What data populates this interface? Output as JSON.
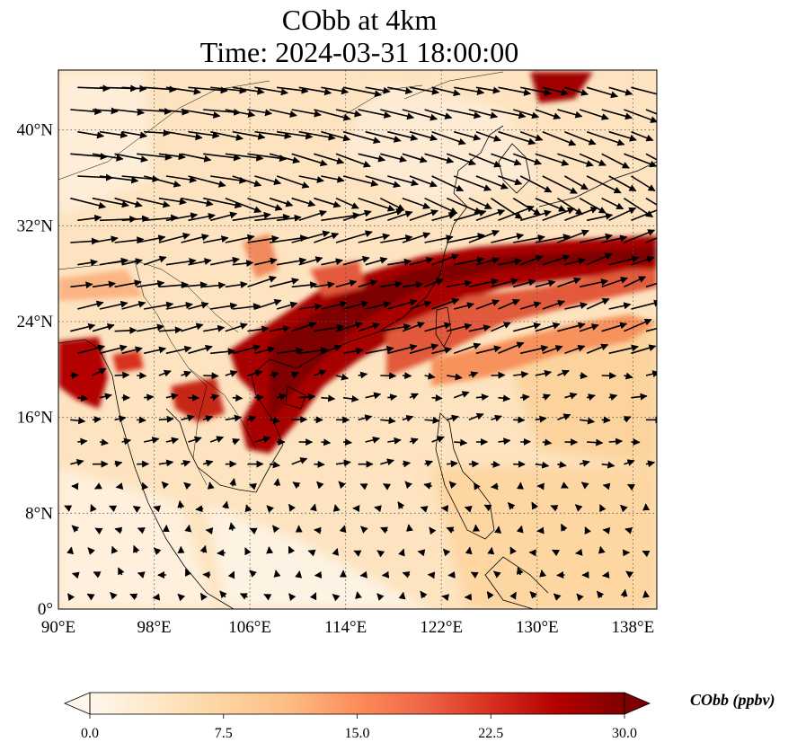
{
  "title": {
    "line1": "CObb at 4km",
    "line2": "Time: 2024-03-31 18:00:00"
  },
  "map": {
    "projection": "PlateCarree",
    "lon_range": [
      90,
      140
    ],
    "lat_range": [
      0,
      45
    ],
    "lon_ticks": [
      {
        "value": 90,
        "label": "90°E"
      },
      {
        "value": 98,
        "label": "98°E"
      },
      {
        "value": 106,
        "label": "106°E"
      },
      {
        "value": 114,
        "label": "114°E"
      },
      {
        "value": 122,
        "label": "122°E"
      },
      {
        "value": 130,
        "label": "130°E"
      },
      {
        "value": 138,
        "label": "138°E"
      }
    ],
    "lat_ticks": [
      {
        "value": 0,
        "label": "0°"
      },
      {
        "value": 8,
        "label": "8°N"
      },
      {
        "value": 16,
        "label": "16°N"
      },
      {
        "value": 24,
        "label": "24°N"
      },
      {
        "value": 32,
        "label": "32°N"
      },
      {
        "value": 40,
        "label": "40°N"
      }
    ],
    "gridlines": "dotted",
    "field": "CObb",
    "units": "ppbv",
    "wind_vectors": true
  },
  "colorbar": {
    "label": "CObb (ppbv)",
    "min": 0.0,
    "max": 30.0,
    "extend": "both",
    "ticks": [
      "0.0",
      "7.5",
      "15.0",
      "22.5",
      "30.0"
    ],
    "colormap": "OrRd",
    "colors": [
      "#fff7ec",
      "#fee8c8",
      "#fdd49e",
      "#fdbb84",
      "#fc8d59",
      "#ef6548",
      "#d7301f",
      "#b30000",
      "#7f0000"
    ]
  }
}
